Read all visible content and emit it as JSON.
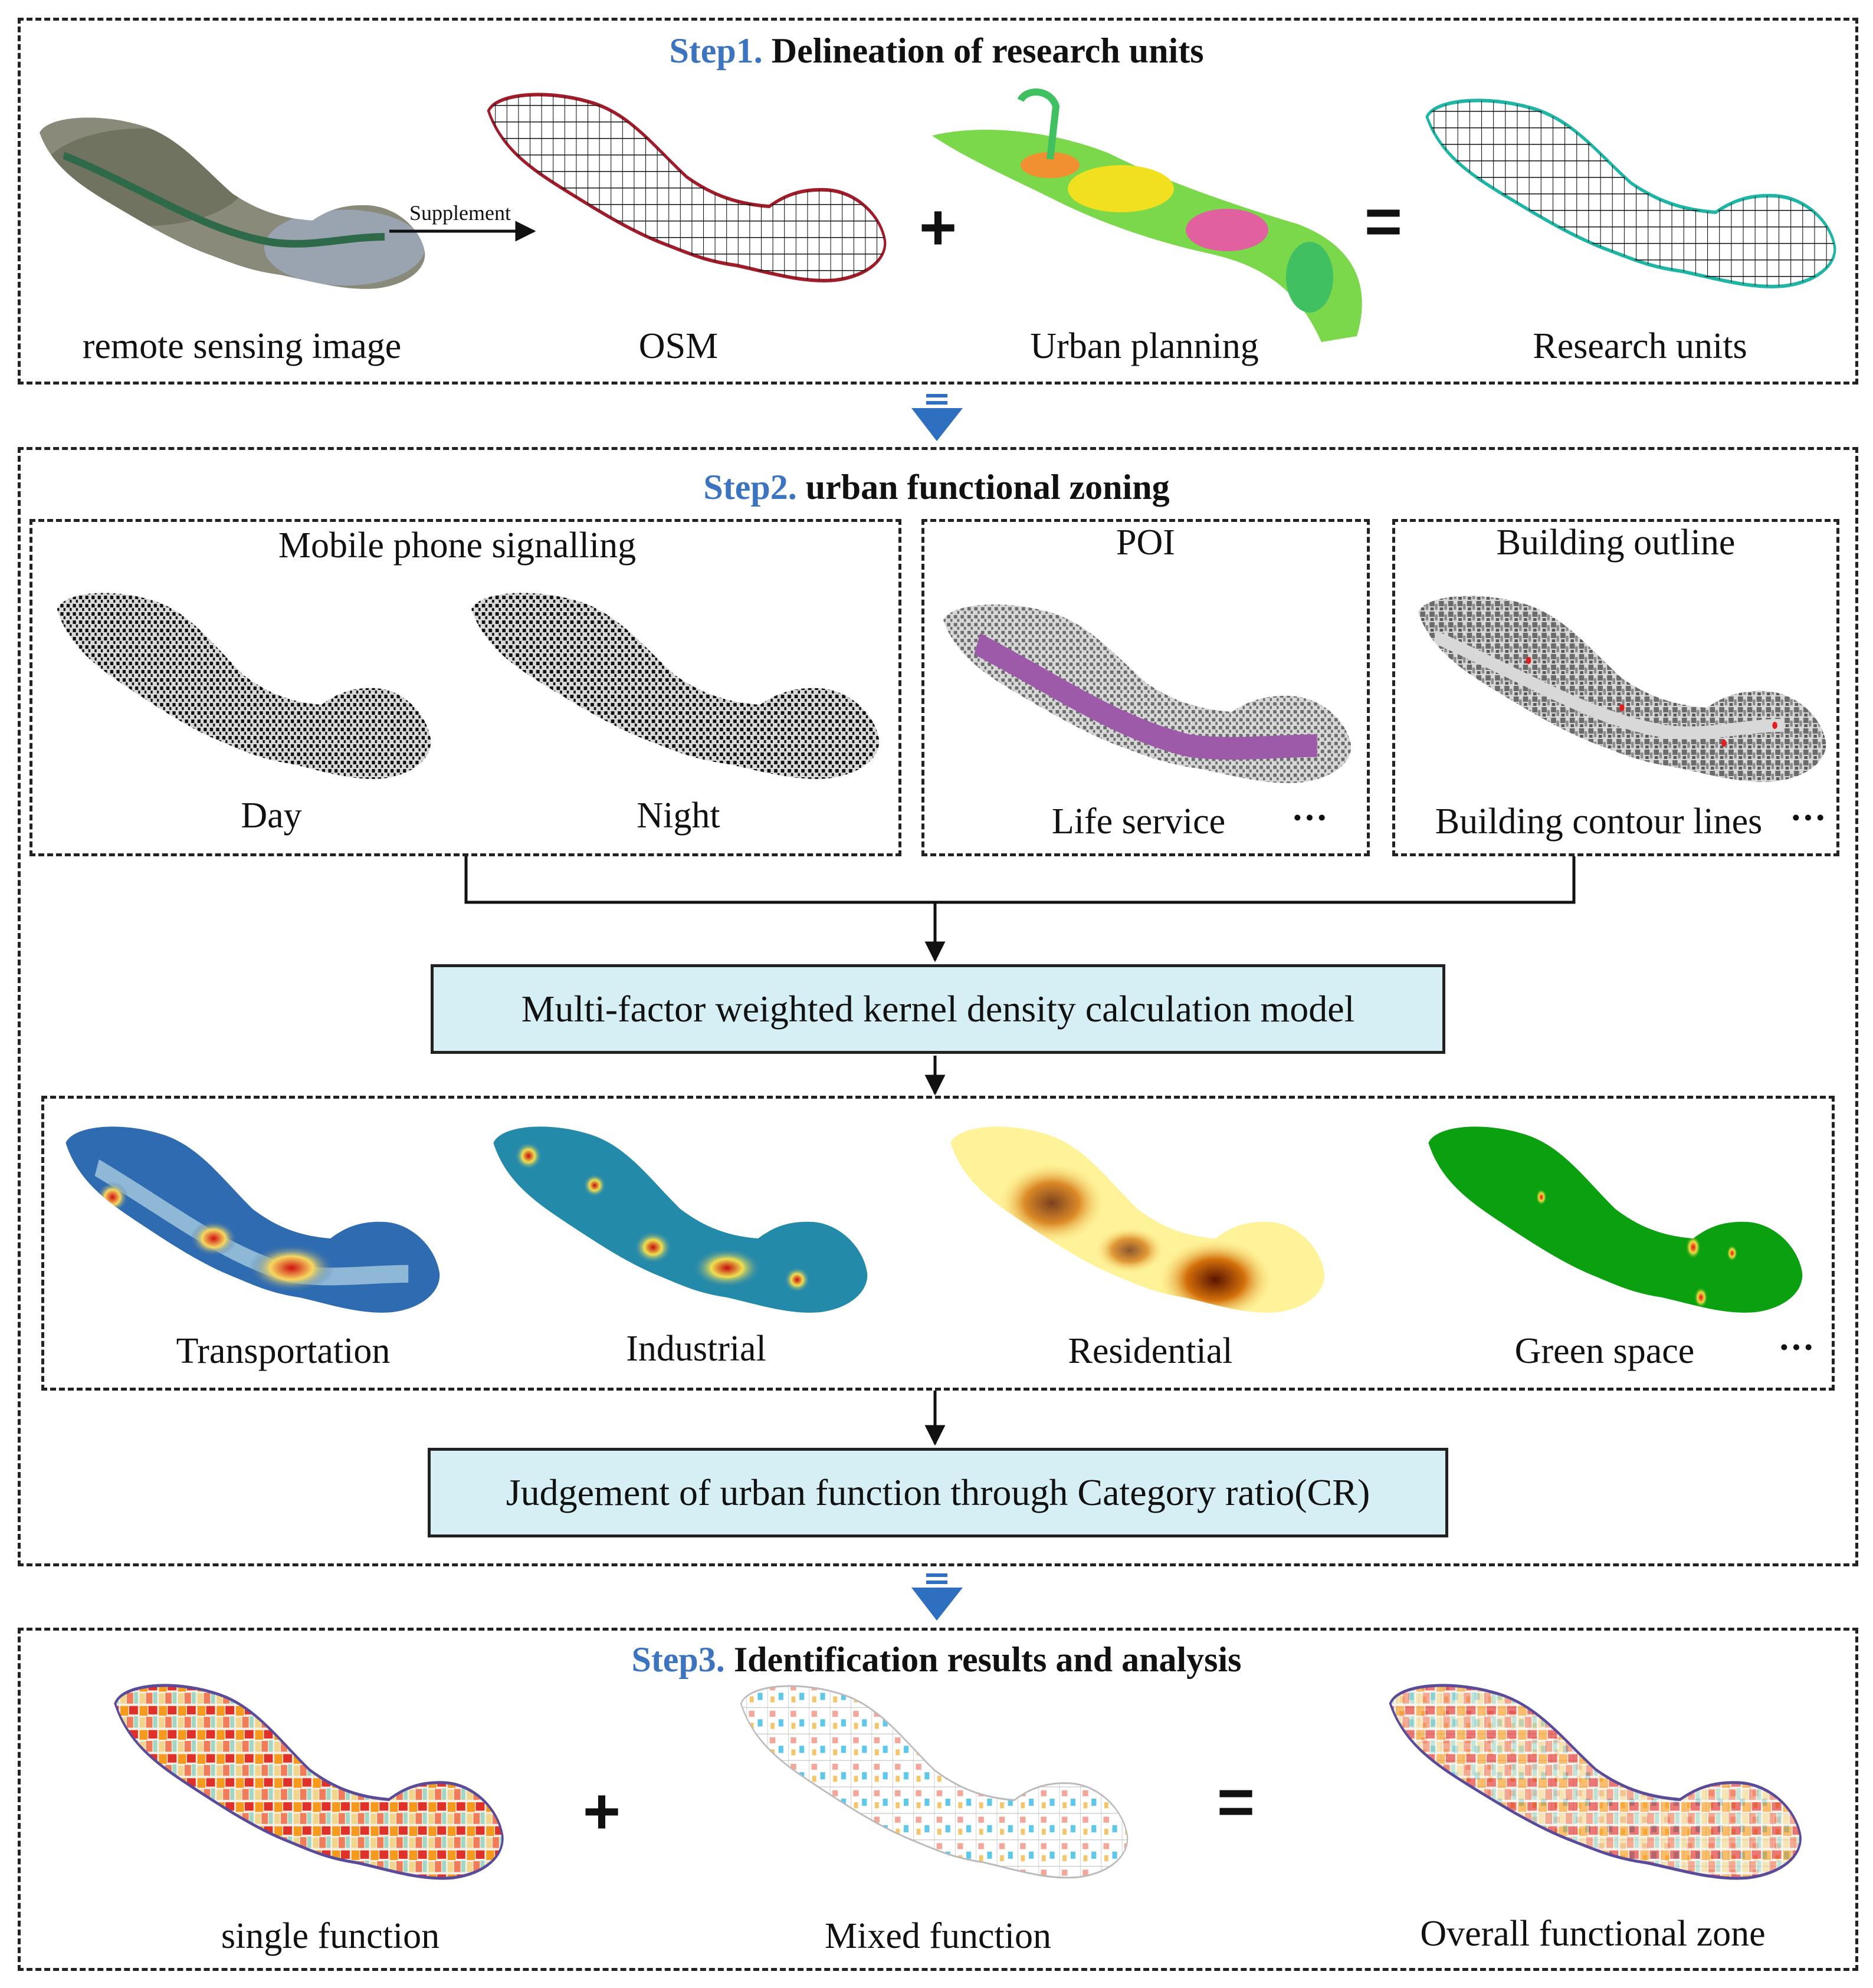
{
  "step1": {
    "num": "Step1.",
    "title": "Delineation of research units",
    "supplement_label": "Supplement",
    "labels": {
      "remote": "remote sensing image",
      "osm": "OSM",
      "urban": "Urban planning",
      "research": "Research units"
    },
    "plus": "+",
    "equals": "="
  },
  "step2": {
    "num": "Step2.",
    "title": "urban functional zoning",
    "mobile": {
      "title": "Mobile phone signalling",
      "day": "Day",
      "night": "Night"
    },
    "poi": {
      "title": "POI",
      "label": "Life service",
      "more": "···"
    },
    "building": {
      "title": "Building outline",
      "label": "Building contour lines",
      "more": "···"
    },
    "model_box": "Multi-factor weighted kernel density calculation model",
    "density": {
      "transportation": "Transportation",
      "industrial": "Industrial",
      "residential": "Residential",
      "green": "Green space",
      "more": "···"
    },
    "cr_box": "Judgement of urban function through Category ratio(CR)"
  },
  "step3": {
    "num": "Step3.",
    "title": "Identification results and analysis",
    "labels": {
      "single": "single function",
      "mixed": "Mixed function",
      "overall": "Overall functional zone"
    },
    "plus": "+",
    "equals": "="
  },
  "colors": {
    "step_blue": "#3d74c0",
    "arrow_blue": "#2f6fc0",
    "box_fill": "#d6eff5",
    "osm_red": "#a01c2a",
    "research_teal": "#1fb5a5",
    "day_orange": "#f2a63a",
    "night_blue": "#3a8fb5",
    "poi_purple": "#9c5aa8",
    "building_gray": "#7a7a7a",
    "green_space": "#0aa010"
  }
}
